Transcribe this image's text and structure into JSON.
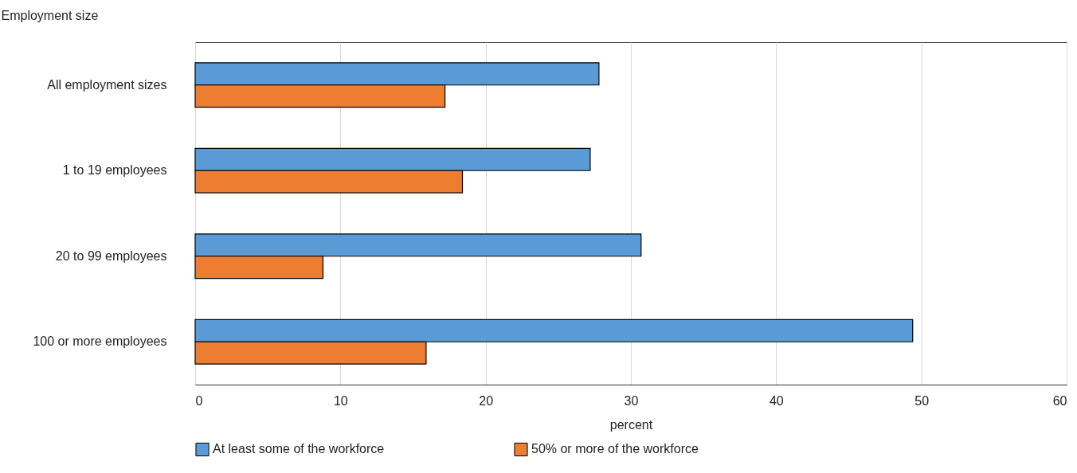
{
  "chart_data": {
    "type": "bar",
    "orientation": "horizontal",
    "ylabel": "Employment size",
    "xlabel": "percent",
    "categories": [
      "All employment sizes",
      "1 to 19 employees",
      "20 to 99 employees",
      "100 or more employees"
    ],
    "series": [
      {
        "name": "At least some of the workforce",
        "color": "#5b9bd5",
        "values": [
          27.8,
          27.2,
          30.7,
          49.4
        ]
      },
      {
        "name": "50% or more of the workforce",
        "color": "#ed7d31",
        "values": [
          17.2,
          18.4,
          8.8,
          15.9
        ]
      }
    ],
    "xlim": [
      0,
      60
    ],
    "xticks": [
      0,
      10,
      20,
      30,
      40,
      50,
      60
    ],
    "grid": "x",
    "legend": "bottom"
  }
}
